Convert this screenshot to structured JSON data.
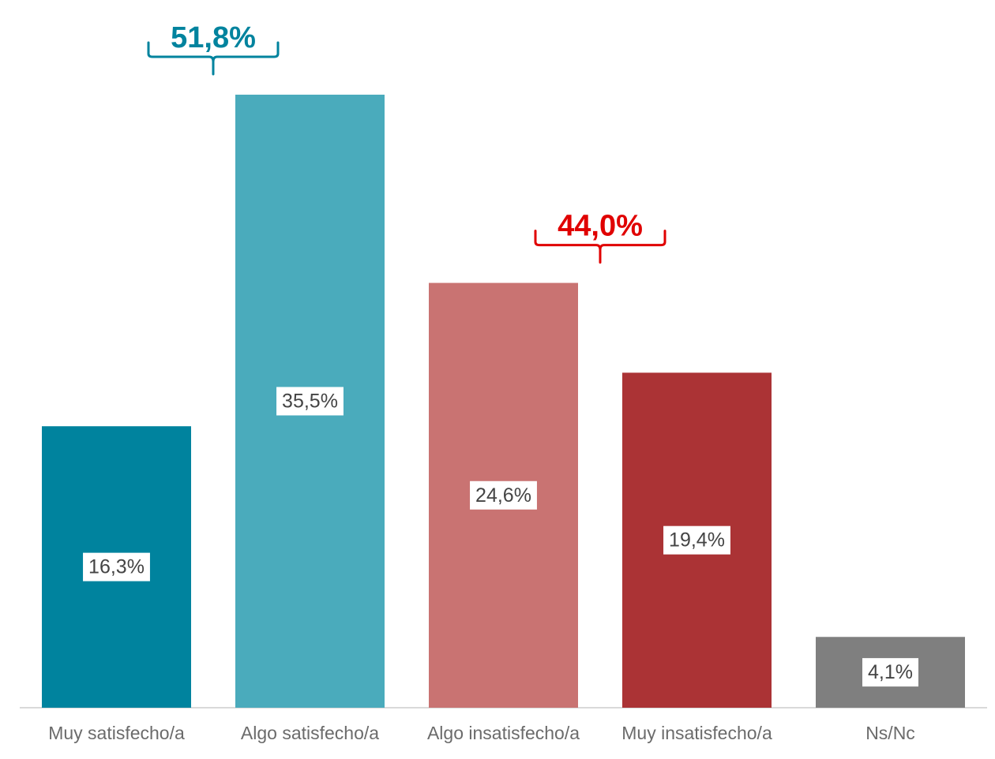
{
  "chart_data": {
    "type": "bar",
    "categories": [
      "Muy satisfecho/a",
      "Algo satisfecho/a",
      "Algo insatisfecho/a",
      "Muy insatisfecho/a",
      "Ns/Nc"
    ],
    "values": [
      16.3,
      35.5,
      24.6,
      19.4,
      4.1
    ],
    "data_labels": [
      "16,3%",
      "35,5%",
      "24,6%",
      "19,4%",
      "4,1%"
    ],
    "colors": [
      "#00839e",
      "#4aabbc",
      "#c97372",
      "#ab3335",
      "#7f7f7f"
    ],
    "ylim": [
      0,
      35.5
    ],
    "grid": false,
    "legend": "none",
    "group_annotations": [
      {
        "label": "51,8%",
        "categories": [
          0,
          1
        ],
        "color": "#00839e"
      },
      {
        "label": "44,0%",
        "categories": [
          2,
          3
        ],
        "color": "#e00000"
      }
    ]
  }
}
